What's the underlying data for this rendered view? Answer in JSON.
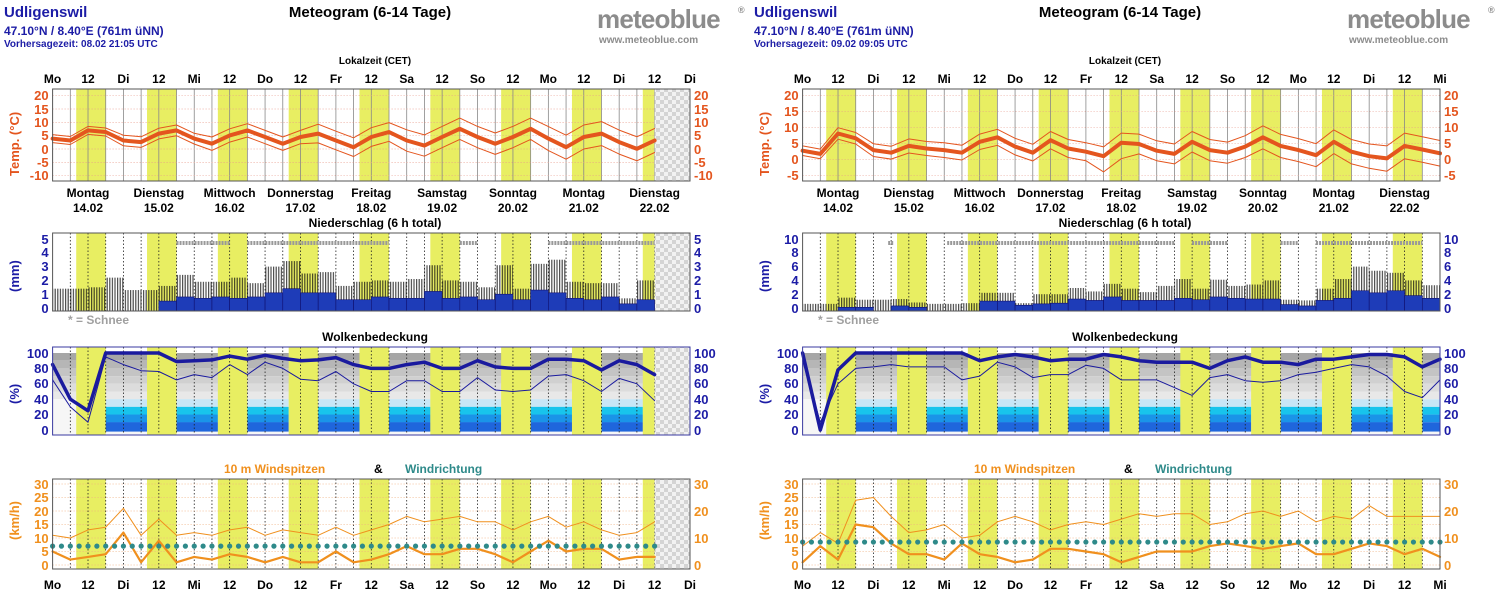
{
  "logo": {
    "brand": "meteoblue",
    "registered": "®",
    "url": "www.meteoblue.com"
  },
  "colors": {
    "daylight": "#e8ee62",
    "temperature": "#e4551e",
    "precip_axis": "#1c1ca6",
    "precip_rain": "#1e3cb8",
    "cloud_line": "#1a1a9e",
    "wind": "#f0901e",
    "wind_direction": "#2e8a8a"
  },
  "chart_data": [
    {
      "type": "line",
      "location": "Udligenswil",
      "coords": "47.10°N / 8.40°E (761m üNN)",
      "forecast_time": "Vorhersagezeit: 08.02 21:05 UTC",
      "title": "Meteogram (6-14 Tage)",
      "local_time_label": "Lokalzeit (CET)",
      "time_labels": [
        "Mo",
        "12",
        "Di",
        "12",
        "Mi",
        "12",
        "Do",
        "12",
        "Fr",
        "12",
        "Sa",
        "12",
        "So",
        "12",
        "Mo",
        "12",
        "Di",
        "12",
        "Di"
      ],
      "days": [
        {
          "name": "Montag",
          "date": "14.02"
        },
        {
          "name": "Dienstag",
          "date": "15.02"
        },
        {
          "name": "Mittwoch",
          "date": "16.02"
        },
        {
          "name": "Donnerstag",
          "date": "17.02"
        },
        {
          "name": "Freitag",
          "date": "18.02"
        },
        {
          "name": "Samstag",
          "date": "19.02"
        },
        {
          "name": "Sonntag",
          "date": "20.02"
        },
        {
          "name": "Montag",
          "date": "21.02"
        },
        {
          "name": "Dienstag",
          "date": "22.02"
        }
      ],
      "step_hours": 6,
      "temperature": {
        "ylabel": "Temp. (°C)",
        "ylim": [
          -10,
          20
        ],
        "ticks": [
          "20",
          "15",
          "10",
          "5",
          "0",
          "-5",
          "-10"
        ],
        "tick_values": [
          20,
          15,
          10,
          5,
          0,
          -5,
          -10
        ],
        "mean": [
          3.9,
          3.2,
          7,
          6.4,
          3.2,
          2.6,
          5.8,
          7,
          3.9,
          2,
          5.1,
          7,
          4.5,
          2,
          4.5,
          5.8,
          3.2,
          0.7,
          4.5,
          6.4,
          3.2,
          1.3,
          4.5,
          7.6,
          4.5,
          2,
          4.5,
          7.6,
          3.9,
          0.7,
          4.5,
          5.8,
          2.6,
          0.1,
          3.2
        ],
        "max": [
          5.4,
          4.7,
          8.5,
          7.9,
          5.2,
          4.6,
          7.8,
          9,
          5.9,
          4.5,
          7.6,
          9.5,
          7,
          4.5,
          7,
          9.3,
          6.7,
          4.2,
          8,
          9.9,
          7.2,
          5.3,
          8.5,
          11.6,
          8.5,
          6,
          8.5,
          11.6,
          8.4,
          5.2,
          9,
          10.3,
          7.1,
          4.6,
          7.7
        ],
        "min": [
          2.4,
          1.7,
          5.5,
          4.9,
          1.2,
          0.6,
          3.8,
          5,
          1.9,
          -0.5,
          2.6,
          4.5,
          2,
          -0.5,
          2,
          2.3,
          -0.3,
          -2.8,
          1,
          2.9,
          -0.8,
          -2.7,
          0.5,
          3.6,
          0.5,
          -2,
          0.5,
          3.6,
          -0.6,
          -3.8,
          0,
          1.3,
          -1.9,
          -4.4,
          -1.3
        ]
      },
      "precipitation": {
        "title": "Niederschlag (6 h total)",
        "ylabel": "(mm)",
        "ylim": [
          0,
          5
        ],
        "ticks": [
          "5",
          "4",
          "3",
          "2",
          "1",
          "0"
        ],
        "tick_values": [
          5,
          4,
          3,
          2,
          1,
          0
        ],
        "snow_legend": "* = Schnee",
        "total": [
          1.4,
          1.4,
          1.5,
          2.2,
          1.3,
          1.3,
          1.6,
          2.4,
          1.9,
          1.9,
          2.2,
          1.8,
          3.0,
          3.4,
          2.5,
          2.6,
          1.6,
          1.9,
          2.0,
          1.9,
          2.1,
          3.1,
          2.0,
          1.9,
          1.5,
          3.1,
          1.4,
          3.2,
          3.5,
          1.9,
          1.8,
          1.8,
          0.7,
          2.0
        ],
        "rain": [
          0,
          0,
          0,
          0,
          0,
          0,
          0.5,
          0.8,
          0.7,
          0.8,
          0.7,
          0.8,
          1.1,
          1.4,
          1.1,
          1.1,
          0.6,
          0.6,
          0.8,
          0.7,
          0.7,
          1.2,
          0.7,
          0.8,
          0.6,
          1.0,
          0.6,
          1.3,
          1.1,
          0.7,
          0.6,
          0.8,
          0.3,
          0.6
        ],
        "snow_hours": [
          [
            42,
            60
          ],
          [
            66,
            114
          ],
          [
            138,
            144
          ],
          [
            168,
            204
          ]
        ]
      },
      "clouds": {
        "title": "Wolkenbedeckung",
        "ylabel": "(%)",
        "ylim": [
          0,
          100
        ],
        "ticks": [
          "100",
          "80",
          "60",
          "40",
          "20",
          "0"
        ],
        "tick_values": [
          100,
          80,
          60,
          40,
          20,
          0
        ],
        "total": [
          85,
          40,
          25,
          100,
          100,
          100,
          100,
          89,
          90,
          91,
          96,
          92,
          97,
          93,
          90,
          91,
          94,
          85,
          80,
          80,
          85,
          88,
          80,
          80,
          90,
          82,
          80,
          80,
          92,
          92,
          90,
          78,
          90,
          85,
          72
        ],
        "lower": [
          65,
          30,
          10,
          95,
          85,
          77,
          76,
          65,
          72,
          68,
          85,
          72,
          88,
          80,
          66,
          64,
          76,
          60,
          50,
          50,
          64,
          64,
          50,
          50,
          68,
          52,
          50,
          52,
          70,
          72,
          64,
          50,
          67,
          60,
          38
        ]
      },
      "wind": {
        "title": "10 m Windspitzen",
        "amp": "&",
        "direction_title": "Windrichtung",
        "ylabel": "(km/h)",
        "ylim": [
          0,
          30
        ],
        "ticks": [
          "30",
          "25",
          "20",
          "15",
          "10",
          "5",
          "0"
        ],
        "tick_values": [
          30,
          25,
          20,
          15,
          10,
          5,
          0
        ],
        "right_ticks": [
          "30",
          "20",
          "10",
          "0"
        ],
        "right_tick_values": [
          30,
          20,
          10,
          0
        ],
        "mean": [
          5,
          2,
          3,
          4,
          12,
          1,
          9,
          1,
          3,
          2,
          4,
          3,
          1,
          3,
          1,
          1,
          5,
          1,
          2,
          4,
          7,
          4,
          4,
          6,
          6,
          4,
          1,
          5,
          9,
          5,
          6,
          6,
          2,
          3,
          3
        ],
        "gusts": [
          11,
          10,
          13,
          14,
          21,
          11,
          17,
          11,
          12,
          11,
          13,
          14,
          11,
          13,
          12,
          11,
          14,
          11,
          13,
          15,
          18,
          16,
          17,
          18,
          16,
          16,
          13,
          16,
          18,
          14,
          16,
          13,
          11,
          12,
          16
        ],
        "direction_marker_kmh": 7
      }
    },
    {
      "type": "line",
      "location": "Udligenswil",
      "coords": "47.10°N / 8.40°E (761m üNN)",
      "forecast_time": "Vorhersagezeit: 09.02 09:05 UTC",
      "title": "Meteogram (6-14 Tage)",
      "local_time_label": "Lokalzeit (CET)",
      "time_labels": [
        "Mo",
        "12",
        "Di",
        "12",
        "Mi",
        "12",
        "Do",
        "12",
        "Fr",
        "12",
        "Sa",
        "12",
        "So",
        "12",
        "Mo",
        "12",
        "Di",
        "12",
        "Mi"
      ],
      "days": [
        {
          "name": "Montag",
          "date": "14.02"
        },
        {
          "name": "Dienstag",
          "date": "15.02"
        },
        {
          "name": "Mittwoch",
          "date": "16.02"
        },
        {
          "name": "Donnerstag",
          "date": "17.02"
        },
        {
          "name": "Freitag",
          "date": "18.02"
        },
        {
          "name": "Samstag",
          "date": "19.02"
        },
        {
          "name": "Sonntag",
          "date": "20.02"
        },
        {
          "name": "Montag",
          "date": "21.02"
        },
        {
          "name": "Dienstag",
          "date": "22.02"
        }
      ],
      "step_hours": 6,
      "temperature": {
        "ylabel": "Temp. (°C)",
        "ylim": [
          -5,
          20
        ],
        "ticks": [
          "20",
          "15",
          "10",
          "5",
          "0",
          "-5"
        ],
        "tick_values": [
          20,
          15,
          10,
          5,
          0,
          -5
        ],
        "mean": [
          2.8,
          1.8,
          8.2,
          6.7,
          3,
          2.2,
          4.3,
          3.5,
          3,
          2.2,
          5.6,
          7,
          4.1,
          2.2,
          6.1,
          3.5,
          2.5,
          1.1,
          5.3,
          4.9,
          2.8,
          1.8,
          5.6,
          3,
          2.2,
          4.1,
          7,
          4.3,
          3,
          1.4,
          5.6,
          2.5,
          1.1,
          0.4,
          4.3,
          3.2,
          2
        ],
        "max": [
          4.3,
          3.3,
          10,
          8.5,
          5,
          4.2,
          6.5,
          5.7,
          5.3,
          4.5,
          8,
          9.5,
          6.7,
          4.8,
          8.8,
          6.3,
          5.3,
          4,
          8.3,
          8,
          5.9,
          4.9,
          8.8,
          6.3,
          5.5,
          7.5,
          10.6,
          7.9,
          6.6,
          5,
          9.3,
          6.3,
          4.9,
          4.3,
          8.3,
          7.2,
          6
        ],
        "min": [
          1.3,
          0.3,
          6.4,
          4.9,
          1,
          0.2,
          2.1,
          1.3,
          0.7,
          -0.1,
          3.2,
          4.5,
          1.5,
          -0.4,
          3.4,
          0.7,
          -0.3,
          -3.8,
          0.3,
          1.8,
          -0.3,
          -1.3,
          2.4,
          -0.3,
          -1.1,
          0.7,
          3.4,
          0.7,
          -0.6,
          -2.2,
          1.9,
          -1.3,
          -2.7,
          -3.6,
          0.3,
          -0.8,
          -2
        ]
      },
      "precipitation": {
        "title": "Niederschlag (6 h total)",
        "ylabel": "(mm)",
        "ylim": [
          0,
          10
        ],
        "ticks": [
          "10",
          "8",
          "6",
          "4",
          "2",
          "0"
        ],
        "tick_values": [
          10,
          8,
          6,
          4,
          2,
          0
        ],
        "snow_legend": "* = Schnee",
        "total": [
          0.6,
          0.6,
          1.5,
          1.2,
          1.2,
          1.3,
          0.8,
          0.6,
          0.6,
          0.7,
          2.2,
          2.2,
          0.7,
          2.0,
          2.0,
          2.9,
          2.4,
          3.5,
          2.8,
          2.3,
          3.2,
          4.2,
          2.8,
          4.1,
          3.2,
          3.4,
          4.0,
          1.2,
          1.1,
          2.8,
          4.2,
          6.0,
          5.4,
          5.1,
          4.0,
          3.3
        ],
        "rain": [
          0,
          0,
          0.1,
          0.1,
          0,
          0.3,
          0.1,
          0,
          0,
          0,
          1.0,
          1.0,
          0.4,
          0.6,
          0.7,
          1.3,
          1.1,
          1.6,
          1.1,
          1.1,
          1.1,
          1.4,
          1.2,
          1.6,
          1.4,
          1.3,
          1.3,
          0.5,
          0.3,
          1.1,
          1.4,
          2.5,
          2.2,
          2.5,
          1.8,
          1.4
        ],
        "snow_hours": [
          [
            29,
            31
          ],
          [
            49,
            126
          ],
          [
            132,
            144
          ],
          [
            162,
            168
          ],
          [
            174,
            210
          ]
        ]
      },
      "clouds": {
        "title": "Wolkenbedeckung",
        "ylabel": "(%)",
        "ylim": [
          0,
          100
        ],
        "ticks": [
          "100",
          "80",
          "60",
          "40",
          "20",
          "0"
        ],
        "tick_values": [
          100,
          80,
          60,
          40,
          20,
          0
        ],
        "total": [
          100,
          0,
          78,
          100,
          100,
          100,
          100,
          100,
          100,
          100,
          90,
          95,
          98,
          95,
          90,
          92,
          92,
          98,
          95,
          90,
          88,
          88,
          88,
          80,
          90,
          95,
          88,
          88,
          85,
          92,
          92,
          95,
          98,
          98,
          95,
          82,
          92
        ],
        "lower": [
          90,
          10,
          60,
          80,
          82,
          85,
          82,
          82,
          82,
          65,
          70,
          88,
          82,
          68,
          72,
          72,
          84,
          80,
          65,
          65,
          65,
          55,
          45,
          68,
          72,
          64,
          62,
          64,
          72,
          75,
          80,
          85,
          82,
          70,
          50,
          42,
          65
        ]
      },
      "wind": {
        "title": "10 m Windspitzen",
        "amp": "&",
        "direction_title": "Windrichtung",
        "ylabel": "(km/h)",
        "ylim": [
          0,
          30
        ],
        "ticks": [
          "30",
          "25",
          "20",
          "15",
          "10",
          "5",
          "0"
        ],
        "tick_values": [
          30,
          25,
          20,
          15,
          10,
          5,
          0
        ],
        "right_ticks": [
          "30",
          "20",
          "10",
          "0"
        ],
        "right_tick_values": [
          30,
          20,
          10,
          0
        ],
        "mean": [
          1,
          7,
          2,
          15,
          14,
          8,
          4,
          4,
          2,
          8,
          4,
          3,
          1,
          2,
          6,
          6,
          5,
          4,
          1,
          3,
          5,
          5,
          5,
          7,
          8,
          7,
          6,
          7,
          8,
          4,
          4,
          6,
          8,
          7,
          4,
          6,
          3
        ],
        "gusts": [
          7,
          12,
          8,
          24,
          25,
          18,
          12,
          13,
          15,
          10,
          11,
          16,
          18,
          16,
          13,
          15,
          16,
          15,
          17,
          19,
          18,
          19,
          19,
          15,
          16,
          19,
          20,
          18,
          20,
          16,
          18,
          17,
          22,
          18,
          18,
          18,
          18
        ],
        "direction_marker_kmh": 8.5
      }
    }
  ]
}
